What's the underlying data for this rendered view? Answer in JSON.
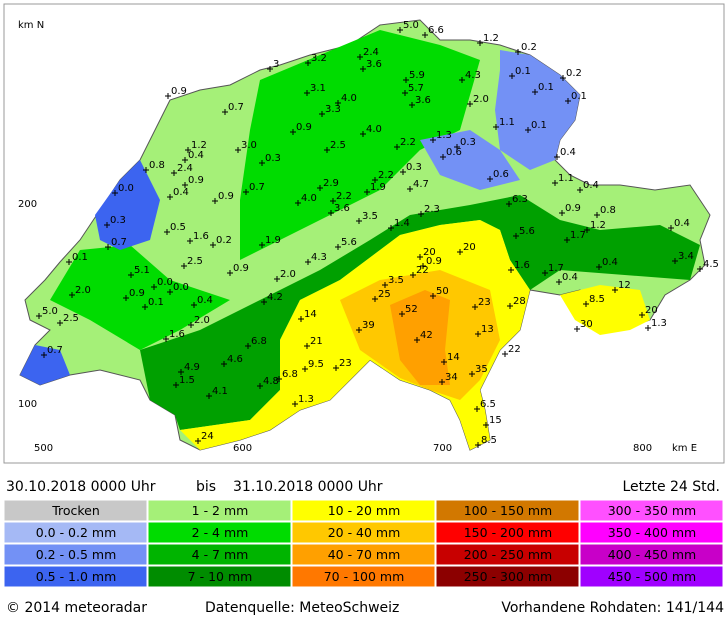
{
  "map": {
    "axis": {
      "y_title": "km N",
      "y_labels": [
        "200",
        "100"
      ],
      "x_labels": [
        "500",
        "600",
        "700",
        "800"
      ],
      "x_title": "km E"
    },
    "stations": [
      "5.0",
      "6.6",
      "1.2",
      "0.2",
      "2.4",
      "3.2",
      "3.6",
      "3",
      "0.1",
      "0.2",
      "5.9",
      "4.3",
      "0.1",
      "0.9",
      "3.1",
      "5.7",
      "0.1",
      "4.0",
      "3.3",
      "3.6",
      "2.0",
      "0.7",
      "1.1",
      "0.1",
      "0.9",
      "4.0",
      "1.3",
      "0.3",
      "2.2",
      "2.5",
      "1.2",
      "3.0",
      "0.6",
      "0.4",
      "0.3",
      "0.4",
      "0.8",
      "2.4",
      "0.3",
      "0.6",
      "1.1",
      "0.9",
      "2.2",
      "2.9",
      "1.9",
      "4.7",
      "0.7",
      "0.0",
      "0.4",
      "0.4",
      "0.9",
      "2.2",
      "4.0",
      "6.3",
      "0.3",
      "3.6",
      "0.9",
      "0.8",
      "2.3",
      "3.5",
      "1.4",
      "5.6",
      "0.4",
      "0.5",
      "1.6",
      "0.2",
      "1.2",
      "1.7",
      "0.7",
      "1.9",
      "5.6",
      "20",
      "0.9",
      "20",
      "3.4",
      "4.5",
      "0.1",
      "2.5",
      "4.3",
      "1.6",
      "1.7",
      "0.4",
      "5.1",
      "0.9",
      "2.0",
      "22",
      "0.4",
      "2.0",
      "0.0",
      "0.0",
      "0.9",
      "0.4",
      "4.2",
      "3.5",
      "25",
      "50",
      "12",
      "0.1",
      "23",
      "28",
      "8.5",
      "5.0",
      "2.5",
      "14",
      "52",
      "20",
      "1.3",
      "2.0",
      "39",
      "13",
      "30",
      "1.6",
      "42",
      "6.8",
      "21",
      "22",
      "14",
      "0.7",
      "4.6",
      "9.5",
      "23",
      "4.9",
      "34",
      "35",
      "1.5",
      "6.8",
      "4.8",
      "4.1",
      "1.3",
      "6.5",
      "15",
      "24",
      "8.5"
    ]
  },
  "period": {
    "from": "30.10.2018 0000 Uhr",
    "sep": "bis",
    "to": "31.10.2018 0000 Uhr",
    "window": "Letzte 24 Std."
  },
  "legend": {
    "columns": [
      [
        {
          "label": "Trocken",
          "color": "#c8c8c8"
        },
        {
          "label": "0.0 - 0.2 mm",
          "color": "#a5b9f5"
        },
        {
          "label": "0.2 - 0.5 mm",
          "color": "#7391f5"
        },
        {
          "label": "0.5 - 1.0 mm",
          "color": "#3c64f0"
        }
      ],
      [
        {
          "label": "1 - 2 mm",
          "color": "#a5f078"
        },
        {
          "label": "2 - 4 mm",
          "color": "#00dc00"
        },
        {
          "label": "4 - 7 mm",
          "color": "#00b400"
        },
        {
          "label": "7 - 10 mm",
          "color": "#008c00"
        }
      ],
      [
        {
          "label": "10 - 20 mm",
          "color": "#ffff00"
        },
        {
          "label": "20 - 40 mm",
          "color": "#ffc800"
        },
        {
          "label": "40 - 70 mm",
          "color": "#ffa000"
        },
        {
          "label": "70 - 100 mm",
          "color": "#ff7800"
        }
      ],
      [
        {
          "label": "100 - 150 mm",
          "color": "#d27800"
        },
        {
          "label": "150 - 200 mm",
          "color": "#ff0000"
        },
        {
          "label": "200 - 250 mm",
          "color": "#c80000"
        },
        {
          "label": "250 - 300 mm",
          "color": "#8c0000"
        }
      ],
      [
        {
          "label": "300 - 350 mm",
          "color": "#ff50ff"
        },
        {
          "label": "350 - 400 mm",
          "color": "#ff00ff"
        },
        {
          "label": "400 - 450 mm",
          "color": "#c800c8"
        },
        {
          "label": "450 - 500 mm",
          "color": "#a000ff"
        }
      ]
    ]
  },
  "footer": {
    "copyright": "© 2014 meteoradar",
    "source": "Datenquelle: MeteoSchweiz",
    "raw": "Vorhandene Rohdaten: 141/144"
  }
}
